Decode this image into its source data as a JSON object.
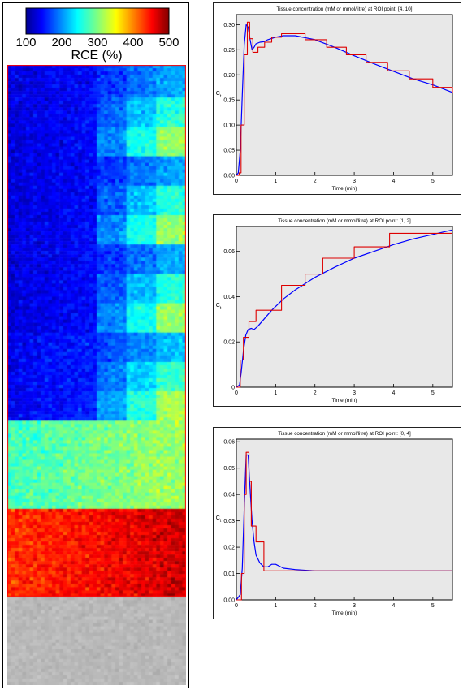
{
  "colorbar": {
    "label": "RCE (%)",
    "ticks": [
      "100",
      "200",
      "300",
      "400",
      "500"
    ],
    "range": [
      100,
      500
    ],
    "colormap": "jet"
  },
  "heatmap": {
    "columns": 48,
    "rows": 190,
    "sections": [
      {
        "kind": "blocky",
        "base": 135,
        "slope": 90,
        "noise": 18
      },
      {
        "kind": "blocky",
        "base": 135,
        "slope": 90,
        "noise": 18
      },
      {
        "kind": "blocky",
        "base": 135,
        "slope": 90,
        "noise": 18
      },
      {
        "kind": "blocky",
        "base": 145,
        "slope": 85,
        "noise": 18
      },
      {
        "kind": "band",
        "value": 275,
        "slope": 40,
        "noise": 22
      },
      {
        "kind": "band",
        "value": 430,
        "slope": 40,
        "noise": 22
      },
      {
        "kind": "gray"
      }
    ],
    "background_color": "#c0c0c0"
  },
  "chart_data": [
    {
      "type": "line",
      "title": "Tissue concentration (mM or mmol/litre) at ROI point: [4, 10]",
      "xlabel": "Time (min)",
      "ylabel": "C_t",
      "xlim": [
        0,
        5.5
      ],
      "ylim": [
        0,
        0.32
      ],
      "xticks": [
        "0",
        "1",
        "2",
        "3",
        "4",
        "5"
      ],
      "yticks": [
        "0.00",
        "0.05",
        "0.10",
        "0.15",
        "0.20",
        "0.25",
        "0.30"
      ],
      "xtick_values": [
        0,
        1,
        2,
        3,
        4,
        5
      ],
      "ytick_values": [
        0,
        0.05,
        0.1,
        0.15,
        0.2,
        0.25,
        0.3
      ],
      "series": [
        {
          "color": "#0000ff",
          "style": "smooth",
          "x": [
            0,
            0.05,
            0.1,
            0.15,
            0.2,
            0.25,
            0.3,
            0.35,
            0.4,
            0.45,
            0.5,
            0.6,
            0.7,
            0.8,
            1.0,
            1.2,
            1.5,
            2.0,
            2.5,
            3.0,
            3.5,
            4.0,
            4.5,
            5.0,
            5.5
          ],
          "y": [
            0,
            0.005,
            0.05,
            0.16,
            0.26,
            0.3,
            0.295,
            0.27,
            0.25,
            0.255,
            0.262,
            0.265,
            0.266,
            0.27,
            0.275,
            0.278,
            0.278,
            0.27,
            0.255,
            0.238,
            0.222,
            0.207,
            0.192,
            0.18,
            0.165
          ]
        },
        {
          "color": "#dd0000",
          "style": "step",
          "x": [
            0,
            0.07,
            0.12,
            0.2,
            0.28,
            0.34,
            0.42,
            0.55,
            0.72,
            0.9,
            1.15,
            1.75,
            2.3,
            2.8,
            3.3,
            3.85,
            4.4,
            5.0,
            5.5
          ],
          "y": [
            0,
            0.005,
            0.1,
            0.24,
            0.305,
            0.272,
            0.245,
            0.255,
            0.265,
            0.275,
            0.282,
            0.27,
            0.255,
            0.24,
            0.225,
            0.208,
            0.192,
            0.175,
            0.165
          ]
        }
      ]
    },
    {
      "type": "line",
      "title": "Tissue concentration (mM or mmol/litre) at ROI point: [1, 2]",
      "xlabel": "Time (min)",
      "ylabel": "C_t",
      "xlim": [
        0,
        5.5
      ],
      "ylim": [
        0,
        0.071
      ],
      "xticks": [
        "0",
        "1",
        "2",
        "3",
        "4",
        "5"
      ],
      "yticks": [
        "0",
        "0.02",
        "0.04",
        "0.06"
      ],
      "xtick_values": [
        0,
        1,
        2,
        3,
        4,
        5
      ],
      "ytick_values": [
        0,
        0.02,
        0.04,
        0.06
      ],
      "series": [
        {
          "color": "#0000ff",
          "style": "smooth",
          "x": [
            0,
            0.08,
            0.12,
            0.18,
            0.24,
            0.3,
            0.38,
            0.45,
            0.55,
            0.7,
            0.9,
            1.2,
            1.5,
            2.0,
            2.5,
            3.0,
            3.5,
            4.0,
            4.5,
            5.0,
            5.5
          ],
          "y": [
            0,
            0.001,
            0.006,
            0.016,
            0.023,
            0.0255,
            0.026,
            0.0255,
            0.027,
            0.03,
            0.034,
            0.039,
            0.043,
            0.0485,
            0.053,
            0.057,
            0.06,
            0.063,
            0.0655,
            0.0675,
            0.0695
          ]
        },
        {
          "color": "#dd0000",
          "style": "step",
          "x": [
            0,
            0.1,
            0.18,
            0.32,
            0.5,
            1.15,
            1.75,
            2.2,
            3.0,
            3.9,
            5.5
          ],
          "y": [
            0,
            0.012,
            0.022,
            0.029,
            0.034,
            0.045,
            0.05,
            0.057,
            0.062,
            0.068,
            0.068
          ]
        }
      ]
    },
    {
      "type": "line",
      "title": "Tissue concentration (mM or mmol/litre) at ROI point: [0, 4]",
      "xlabel": "Time (min)",
      "ylabel": "C_t",
      "xlim": [
        0,
        5.5
      ],
      "ylim": [
        0,
        0.061
      ],
      "xticks": [
        "0",
        "1",
        "2",
        "3",
        "4",
        "5"
      ],
      "yticks": [
        "0.00",
        "0.01",
        "0.02",
        "0.03",
        "0.04",
        "0.05",
        "0.06"
      ],
      "xtick_values": [
        0,
        1,
        2,
        3,
        4,
        5
      ],
      "ytick_values": [
        0,
        0.01,
        0.02,
        0.03,
        0.04,
        0.05,
        0.06
      ],
      "series": [
        {
          "color": "#0000ff",
          "style": "smooth",
          "x": [
            0,
            0.1,
            0.15,
            0.2,
            0.25,
            0.3,
            0.35,
            0.4,
            0.45,
            0.5,
            0.6,
            0.7,
            0.8,
            0.9,
            1.0,
            1.2,
            1.5,
            2.0,
            3.0,
            4.0,
            5.0,
            5.5
          ],
          "y": [
            0,
            0.002,
            0.012,
            0.035,
            0.055,
            0.055,
            0.042,
            0.03,
            0.022,
            0.017,
            0.014,
            0.0125,
            0.0125,
            0.0135,
            0.0135,
            0.012,
            0.0115,
            0.011,
            0.011,
            0.011,
            0.011,
            0.011
          ]
        },
        {
          "color": "#dd0000",
          "style": "step",
          "x": [
            0,
            0.13,
            0.2,
            0.25,
            0.32,
            0.38,
            0.5,
            0.7,
            5.5
          ],
          "y": [
            0,
            0.01,
            0.04,
            0.056,
            0.045,
            0.028,
            0.022,
            0.011,
            0.011
          ]
        }
      ]
    }
  ]
}
